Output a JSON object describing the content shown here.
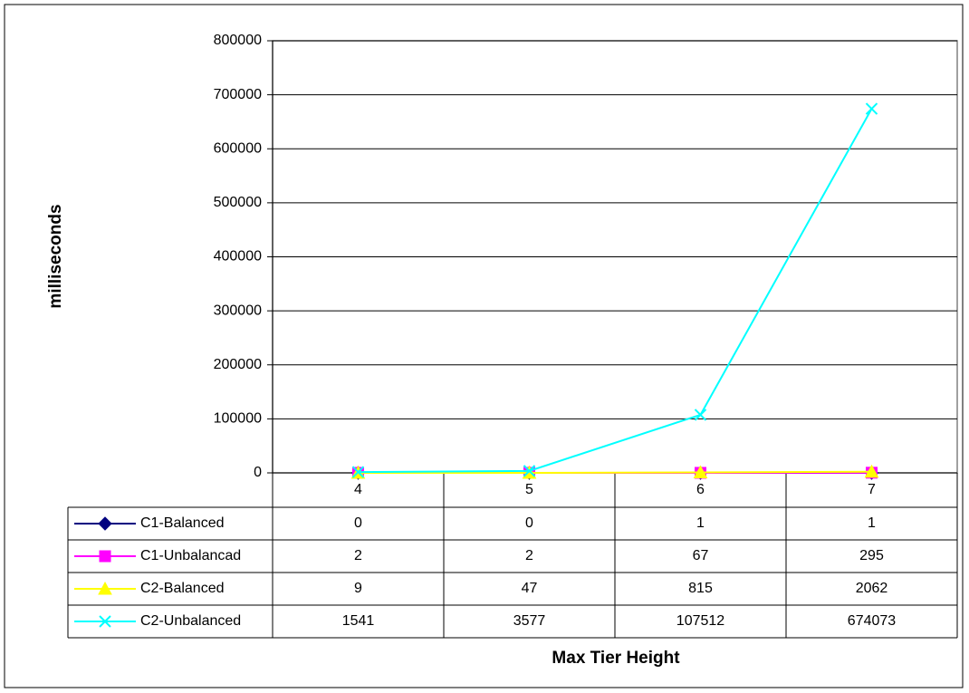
{
  "chart_data": {
    "type": "line",
    "x_label": "Max Tier Height",
    "y_label": "milliseconds",
    "categories": [
      "4",
      "5",
      "6",
      "7"
    ],
    "series": [
      {
        "name": "C1-Balanced",
        "color": "#000080",
        "marker": "diamond",
        "values": [
          0,
          0,
          1,
          1
        ]
      },
      {
        "name": "C1-Unbalancad",
        "color": "#ff00ff",
        "marker": "square",
        "values": [
          2,
          2,
          67,
          295
        ]
      },
      {
        "name": "C2-Balanced",
        "color": "#ffff00",
        "marker": "triangle",
        "values": [
          9,
          47,
          815,
          2062
        ]
      },
      {
        "name": "C2-Unbalanced",
        "color": "#00ffff",
        "marker": "x",
        "values": [
          1541,
          3577,
          107512,
          674073
        ]
      }
    ],
    "ylim": [
      0,
      800000
    ],
    "yticks": [
      0,
      100000,
      200000,
      300000,
      400000,
      500000,
      600000,
      700000,
      800000
    ],
    "grid": true,
    "data_table": true
  }
}
